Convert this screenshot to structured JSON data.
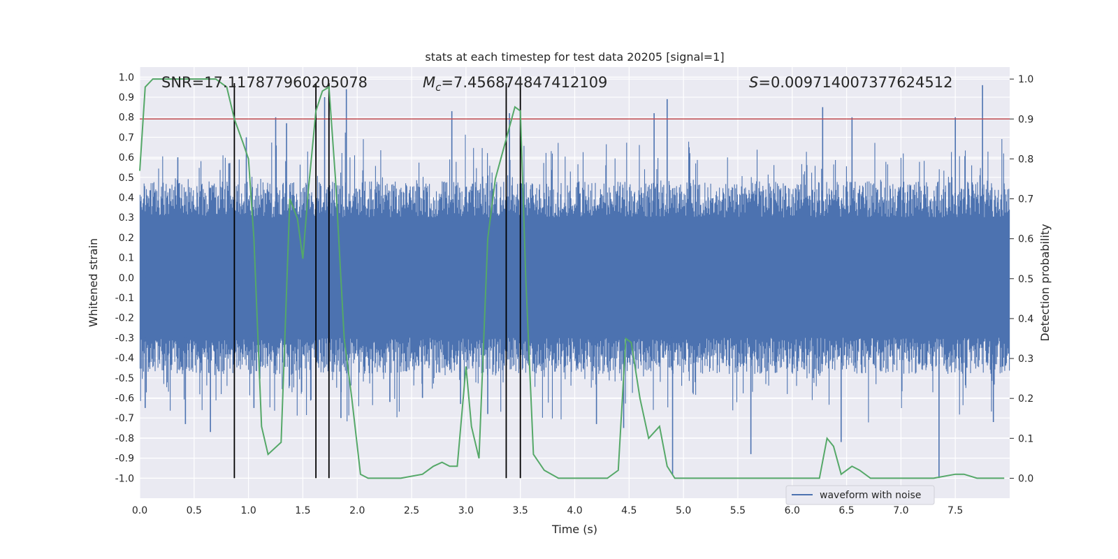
{
  "chart_data": {
    "type": "line",
    "title": "stats at each timestep for test data 20205 [signal=1]",
    "xlabel": "Time (s)",
    "ylabel": "Whitened strain",
    "y2label": "Detection probability",
    "xlim": [
      0.0,
      8.0
    ],
    "ylim": [
      -1.1,
      1.05
    ],
    "y2lim": [
      -0.05,
      1.03
    ],
    "x_ticks": [
      "0.0",
      "0.5",
      "1.0",
      "1.5",
      "2.0",
      "2.5",
      "3.0",
      "3.5",
      "4.0",
      "4.5",
      "5.0",
      "5.5",
      "6.0",
      "6.5",
      "7.0",
      "7.5"
    ],
    "y_ticks": [
      "1.0",
      "0.9",
      "0.8",
      "0.7",
      "0.6",
      "0.5",
      "0.4",
      "0.3",
      "0.2",
      "0.1",
      "0.0",
      "-0.1",
      "-0.2",
      "-0.3",
      "-0.4",
      "-0.5",
      "-0.6",
      "-0.7",
      "-0.8",
      "-0.9",
      "-1.0"
    ],
    "y2_ticks": [
      "1.0",
      "0.9",
      "0.8",
      "0.7",
      "0.6",
      "0.5",
      "0.4",
      "0.3",
      "0.2",
      "0.1",
      "0.0"
    ],
    "grid": true,
    "legend": {
      "placement": "lower-right",
      "entries": [
        {
          "name": "waveform with noise",
          "color": "#4c72b0"
        }
      ]
    },
    "annotations": {
      "snr": "SNR=17.117877960205078",
      "mc_symbol": "M",
      "mc_subscript": "c",
      "mc_value": "=7.456874847412109",
      "s_symbol": "S",
      "s_value": "=0.009714007377624512"
    },
    "threshold": {
      "value": 0.9,
      "axis": "y2",
      "color": "#c44e52"
    },
    "vlines": {
      "x": [
        0.87,
        1.62,
        1.74,
        3.37,
        3.5
      ],
      "ymin": -1.0,
      "ymax": 0.97,
      "color": "#000000"
    },
    "waveform": {
      "name": "waveform with noise",
      "color": "#4c72b0",
      "core_amplitude": 0.4,
      "peaks": [
        {
          "x": 0.05,
          "y": -0.65
        },
        {
          "x": 0.35,
          "y": 0.6
        },
        {
          "x": 0.42,
          "y": -0.73
        },
        {
          "x": 0.65,
          "y": -0.77
        },
        {
          "x": 0.82,
          "y": 0.57
        },
        {
          "x": 0.98,
          "y": 0.7
        },
        {
          "x": 1.05,
          "y": -0.65
        },
        {
          "x": 1.25,
          "y": 0.8
        },
        {
          "x": 1.35,
          "y": 0.77
        },
        {
          "x": 1.7,
          "y": 0.9
        },
        {
          "x": 1.9,
          "y": 0.94
        },
        {
          "x": 1.85,
          "y": -0.7
        },
        {
          "x": 2.3,
          "y": -0.62
        },
        {
          "x": 2.6,
          "y": -0.6
        },
        {
          "x": 2.87,
          "y": 0.83
        },
        {
          "x": 2.95,
          "y": -0.63
        },
        {
          "x": 3.2,
          "y": -0.68
        },
        {
          "x": 3.4,
          "y": 0.82
        },
        {
          "x": 4.2,
          "y": -0.73
        },
        {
          "x": 4.45,
          "y": -0.75
        },
        {
          "x": 4.73,
          "y": 0.82
        },
        {
          "x": 4.85,
          "y": 0.89
        },
        {
          "x": 4.9,
          "y": -0.98
        },
        {
          "x": 5.62,
          "y": -0.88
        },
        {
          "x": 6.28,
          "y": 0.85
        },
        {
          "x": 6.55,
          "y": 0.8
        },
        {
          "x": 6.45,
          "y": -0.82
        },
        {
          "x": 7.35,
          "y": -1.0
        },
        {
          "x": 7.5,
          "y": 0.8
        },
        {
          "x": 7.75,
          "y": 0.96
        },
        {
          "x": 7.85,
          "y": -0.72
        }
      ]
    },
    "probability": {
      "color": "#55a868",
      "x": [
        0.0,
        0.05,
        0.12,
        0.3,
        0.5,
        0.7,
        0.75,
        0.8,
        0.87,
        0.95,
        1.0,
        1.05,
        1.12,
        1.18,
        1.3,
        1.38,
        1.45,
        1.5,
        1.55,
        1.62,
        1.68,
        1.74,
        1.8,
        1.88,
        1.95,
        2.03,
        2.1,
        2.2,
        2.4,
        2.6,
        2.7,
        2.78,
        2.85,
        2.92,
        3.0,
        3.05,
        3.12,
        3.2,
        3.27,
        3.37,
        3.45,
        3.5,
        3.55,
        3.62,
        3.72,
        3.85,
        4.0,
        4.2,
        4.3,
        4.4,
        4.47,
        4.52,
        4.6,
        4.68,
        4.78,
        4.85,
        4.92,
        5.0,
        5.1,
        5.5,
        5.8,
        6.0,
        6.25,
        6.32,
        6.38,
        6.45,
        6.55,
        6.62,
        6.72,
        7.0,
        7.3,
        7.5,
        7.58,
        7.7,
        7.95
      ],
      "y": [
        0.77,
        0.98,
        1.0,
        1.0,
        1.0,
        1.0,
        0.99,
        0.98,
        0.9,
        0.84,
        0.8,
        0.6,
        0.13,
        0.06,
        0.09,
        0.7,
        0.65,
        0.55,
        0.72,
        0.92,
        0.97,
        0.98,
        0.75,
        0.35,
        0.2,
        0.01,
        0.0,
        0.0,
        0.0,
        0.01,
        0.03,
        0.04,
        0.03,
        0.03,
        0.28,
        0.13,
        0.05,
        0.6,
        0.75,
        0.85,
        0.93,
        0.92,
        0.5,
        0.06,
        0.02,
        0.0,
        0.0,
        0.0,
        0.0,
        0.02,
        0.35,
        0.34,
        0.2,
        0.1,
        0.13,
        0.03,
        0.0,
        0.0,
        0.0,
        0.0,
        0.0,
        0.0,
        0.0,
        0.1,
        0.08,
        0.01,
        0.03,
        0.02,
        0.0,
        0.0,
        0.0,
        0.01,
        0.01,
        0.0,
        0.0
      ]
    }
  }
}
